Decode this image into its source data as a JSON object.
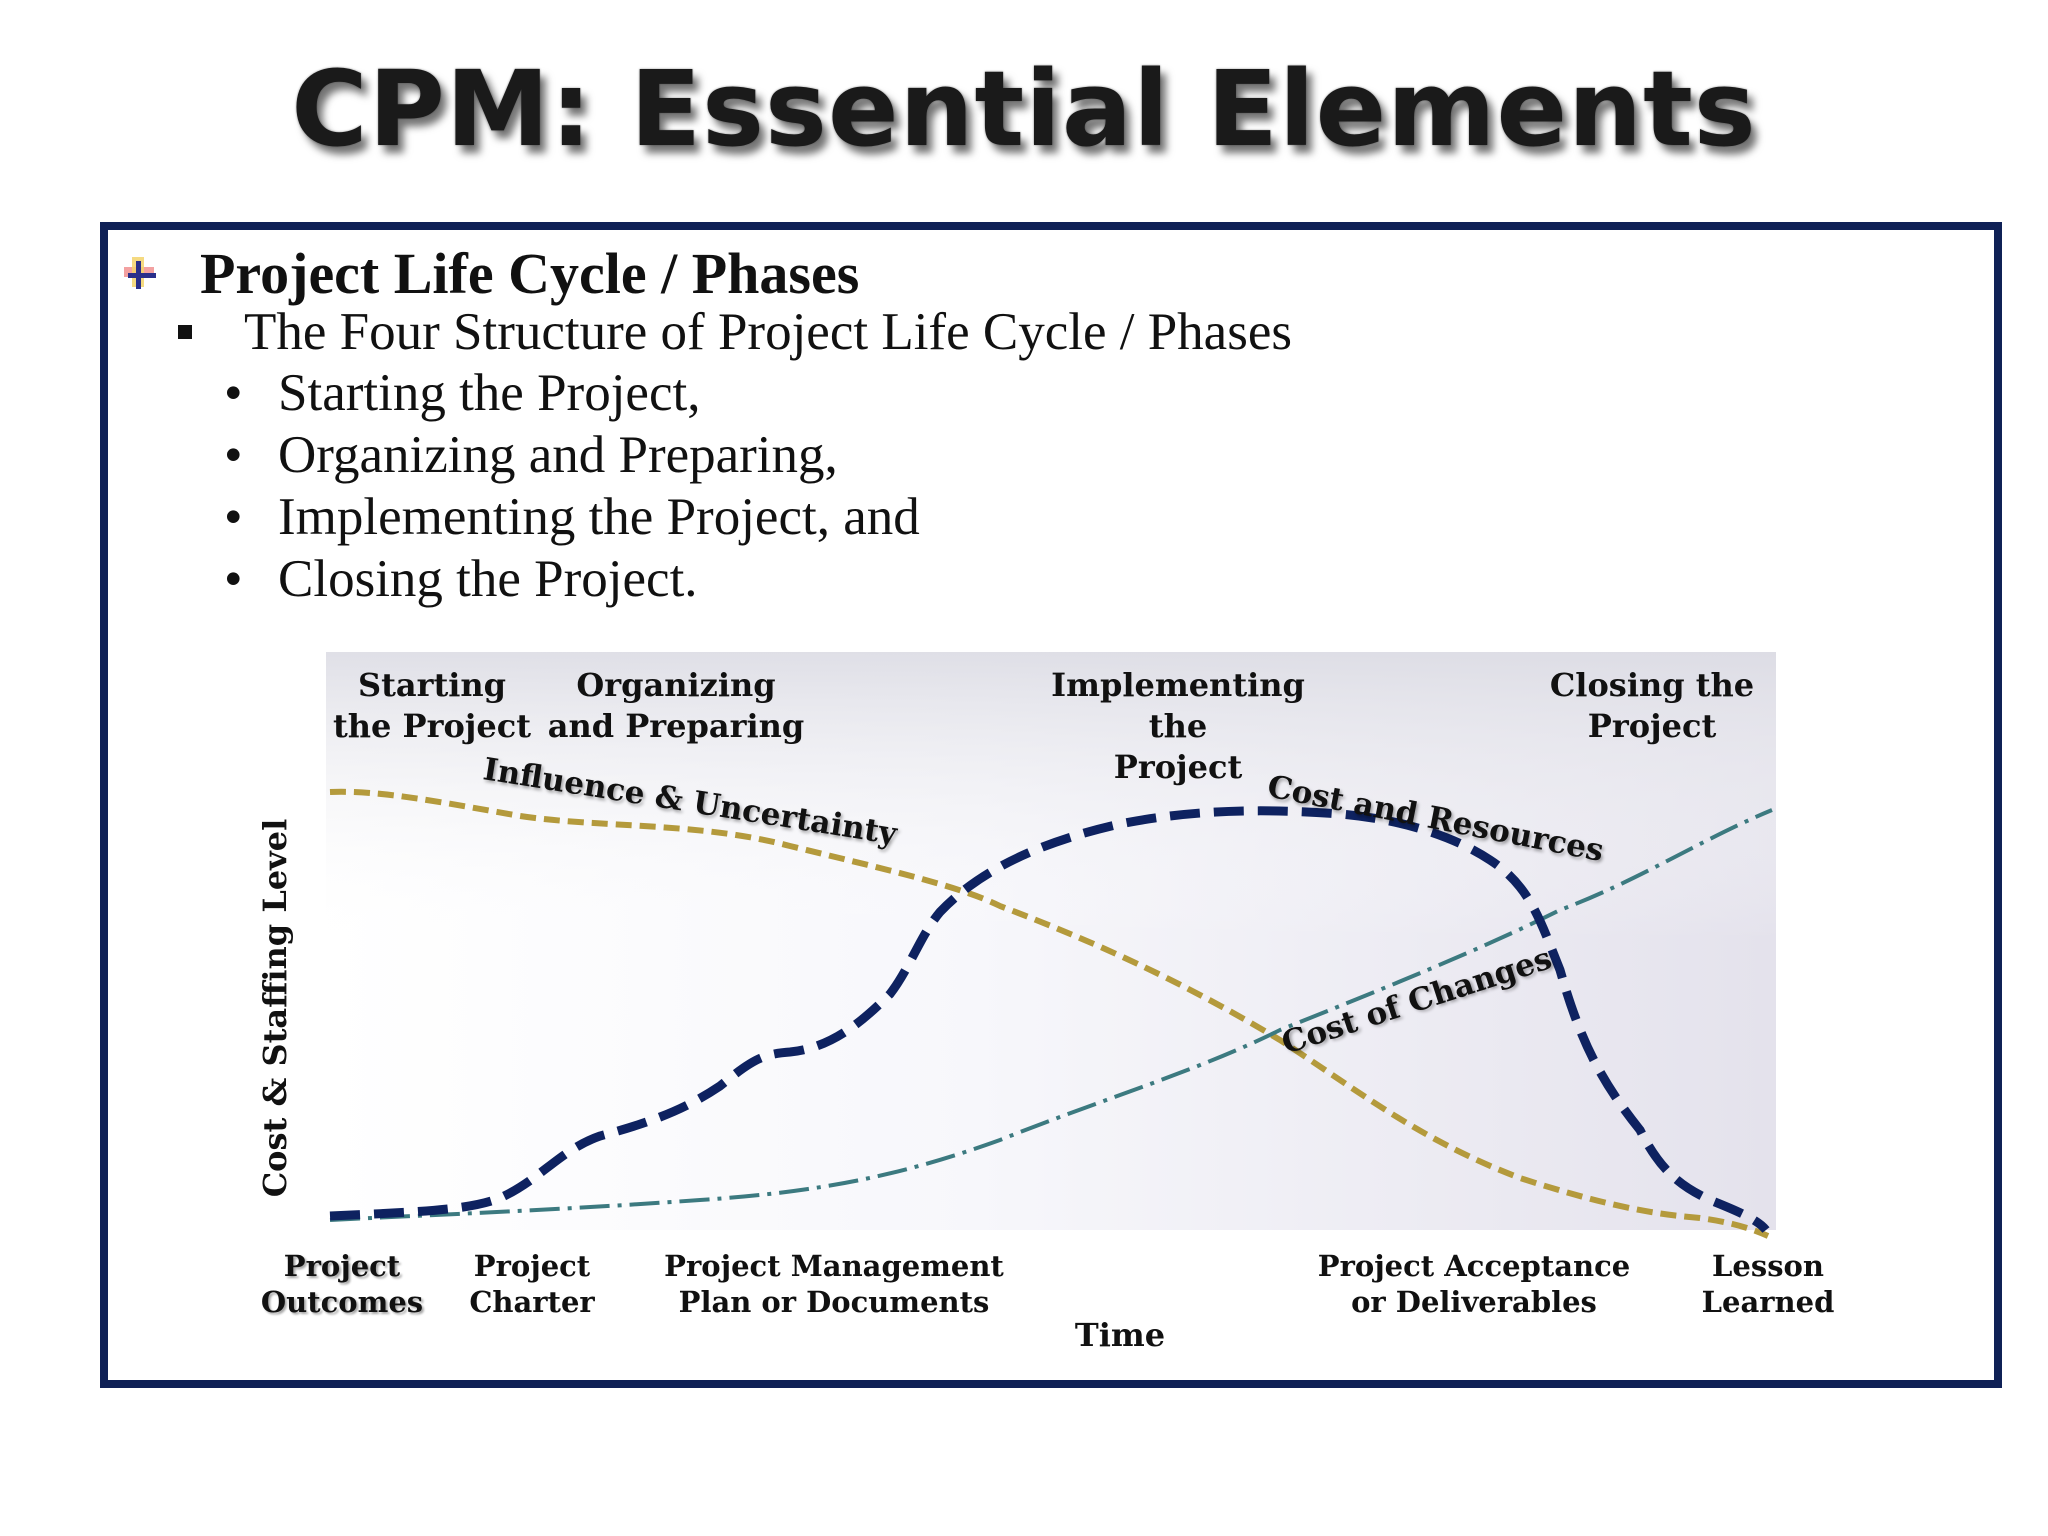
{
  "title": "CPM: Essential Elements",
  "heading": "Project Life Cycle / Phases",
  "subheading": "The Four Structure of Project Life Cycle / Phases",
  "phases_list": [
    "Starting the Project,",
    "Organizing and Preparing,",
    "Implementing the Project, and",
    "Closing the Project."
  ],
  "diagram": {
    "phase_labels": [
      [
        "Starting",
        "the Project"
      ],
      [
        "Organizing",
        "and Preparing"
      ],
      [
        "Implementing",
        "the",
        "Project"
      ],
      [
        "Closing the",
        "Project"
      ]
    ],
    "curve_labels": {
      "influence": "Influence & Uncertainty",
      "cost_resources": "Cost  and Resources",
      "cost_changes": "Cost of Changes"
    },
    "y_axis_label": "Cost  &  Staffing  Level",
    "x_axis_label": "Time",
    "deliverables": [
      [
        "Project",
        "Outcomes"
      ],
      [
        "Project",
        "Charter"
      ],
      [
        "Project Management",
        "Plan or Documents"
      ],
      [
        "Project Acceptance",
        "or Deliverables"
      ],
      [
        "Lesson",
        "Learned"
      ]
    ]
  },
  "colors": {
    "frame": "#0f2156",
    "influence_curve": "#b49a3c",
    "cost_curve": "#0e2260",
    "changes_curve": "#3c7a80"
  }
}
